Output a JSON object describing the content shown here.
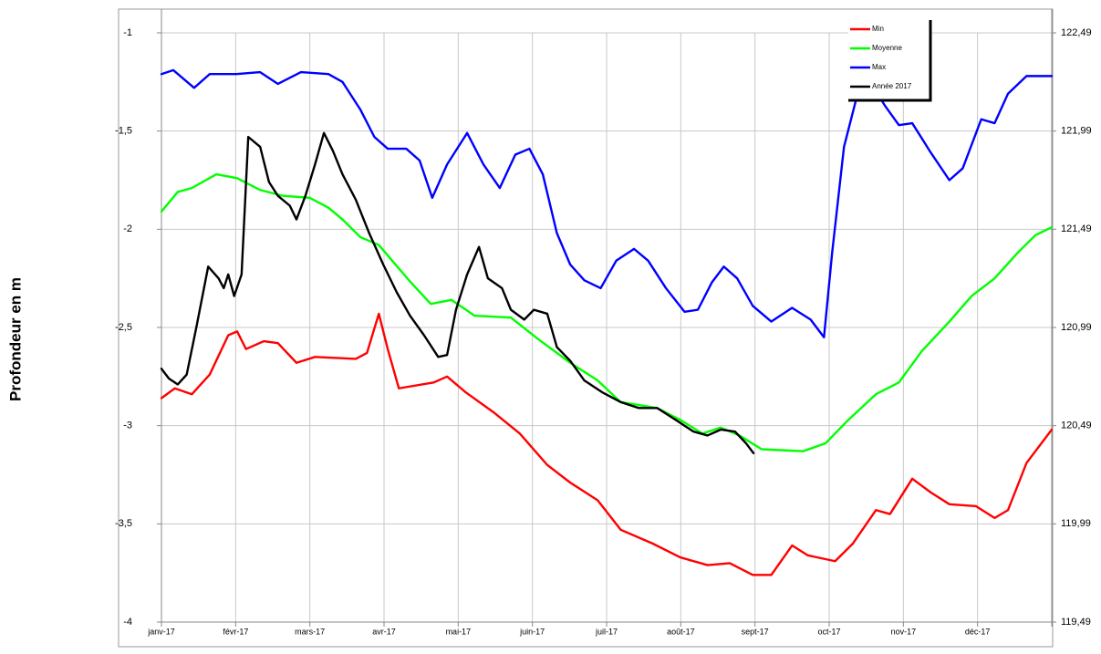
{
  "chart_data": {
    "type": "line",
    "y_label": "Profondeur en m",
    "xlim": [
      0,
      12
    ],
    "xticks": [
      {
        "value": 0,
        "label": "janv-17"
      },
      {
        "value": 1,
        "label": "févr-17"
      },
      {
        "value": 2,
        "label": "mars-17"
      },
      {
        "value": 3,
        "label": "avr-17"
      },
      {
        "value": 4,
        "label": "mai-17"
      },
      {
        "value": 5,
        "label": "juin-17"
      },
      {
        "value": 6,
        "label": "juil-17"
      },
      {
        "value": 7,
        "label": "août-17"
      },
      {
        "value": 8,
        "label": "sept-17"
      },
      {
        "value": 9,
        "label": "oct-17"
      },
      {
        "value": 10,
        "label": "nov-17"
      },
      {
        "value": 11,
        "label": "déc-17"
      },
      12
    ],
    "ylim": [
      -4,
      -1
    ],
    "yticks": [
      -1,
      {
        "value": -1.5,
        "label": "-1,5"
      },
      -2,
      {
        "value": -2.5,
        "label": "-2,5"
      },
      -3,
      {
        "value": -3.5,
        "label": "-3,5"
      },
      -4
    ],
    "y2lim": [
      119.49,
      122.49
    ],
    "y2ticks": [
      {
        "value": 122.49,
        "label": "122,49"
      },
      {
        "value": 121.99,
        "label": "121,99"
      },
      {
        "value": 121.49,
        "label": "121,49"
      },
      {
        "value": 120.99,
        "label": "120,99"
      },
      {
        "value": 120.49,
        "label": "120,49"
      },
      {
        "value": 119.99,
        "label": "119,99"
      },
      {
        "value": 119.49,
        "label": "119,49"
      }
    ],
    "grid": true,
    "legend": "top-right",
    "series": [
      {
        "name": "Min",
        "color": "#ff0000",
        "x": [
          0,
          0.18,
          0.41,
          0.65,
          0.9,
          1.02,
          1.14,
          1.38,
          1.57,
          1.82,
          2.07,
          2.62,
          2.77,
          2.93,
          3.05,
          3.2,
          3.67,
          3.85,
          4.1,
          4.47,
          4.83,
          5.2,
          5.51,
          5.88,
          6.19,
          6.62,
          6.99,
          7.36,
          7.66,
          7.97,
          8.22,
          8.5,
          8.71,
          9.08,
          9.32,
          9.63,
          9.82,
          10.12,
          10.37,
          10.62,
          10.98,
          11.23,
          11.41,
          11.66,
          12
        ],
        "values": [
          -2.86,
          -2.81,
          -2.84,
          -2.74,
          -2.54,
          -2.52,
          -2.61,
          -2.57,
          -2.58,
          -2.68,
          -2.65,
          -2.66,
          -2.63,
          -2.43,
          -2.61,
          -2.81,
          -2.78,
          -2.75,
          -2.83,
          -2.93,
          -3.04,
          -3.2,
          -3.29,
          -3.38,
          -3.53,
          -3.6,
          -3.67,
          -3.71,
          -3.7,
          -3.76,
          -3.76,
          -3.61,
          -3.66,
          -3.69,
          -3.6,
          -3.43,
          -3.45,
          -3.27,
          -3.34,
          -3.4,
          -3.41,
          -3.47,
          -3.43,
          -3.19,
          -3.02
        ]
      },
      {
        "name": "Moyenne",
        "color": "#00ff00",
        "x": [
          0,
          0.22,
          0.41,
          0.74,
          1.02,
          1.33,
          1.64,
          2.0,
          2.25,
          2.44,
          2.68,
          2.93,
          3.11,
          3.36,
          3.63,
          3.91,
          4.22,
          4.71,
          5.08,
          5.51,
          5.88,
          6.19,
          6.68,
          6.99,
          7.29,
          7.54,
          7.79,
          8.09,
          8.65,
          8.95,
          9.26,
          9.63,
          9.94,
          10.25,
          10.62,
          10.92,
          11.23,
          11.54,
          11.78,
          12
        ],
        "values": [
          -1.91,
          -1.81,
          -1.79,
          -1.72,
          -1.74,
          -1.8,
          -1.83,
          -1.84,
          -1.89,
          -1.95,
          -2.04,
          -2.08,
          -2.16,
          -2.27,
          -2.38,
          -2.36,
          -2.44,
          -2.45,
          -2.56,
          -2.68,
          -2.77,
          -2.88,
          -2.91,
          -2.97,
          -3.04,
          -3.01,
          -3.05,
          -3.12,
          -3.13,
          -3.09,
          -2.97,
          -2.84,
          -2.78,
          -2.62,
          -2.47,
          -2.34,
          -2.25,
          -2.12,
          -2.03,
          -1.99
        ]
      },
      {
        "name": "Max",
        "color": "#0000ff",
        "x": [
          0,
          0.16,
          0.44,
          0.65,
          1.01,
          1.33,
          1.57,
          1.88,
          2.25,
          2.44,
          2.68,
          2.87,
          3.05,
          3.3,
          3.48,
          3.65,
          3.85,
          4.12,
          4.34,
          4.56,
          4.77,
          4.96,
          5.14,
          5.33,
          5.51,
          5.7,
          5.92,
          6.13,
          6.37,
          6.56,
          6.8,
          7.05,
          7.23,
          7.42,
          7.58,
          7.76,
          7.97,
          8.22,
          8.5,
          8.75,
          8.93,
          9.04,
          9.2,
          9.39,
          9.57,
          9.75,
          9.94,
          10.12,
          10.37,
          10.62,
          10.8,
          11.05,
          11.23,
          11.41,
          11.66,
          12
        ],
        "values": [
          -1.21,
          -1.19,
          -1.28,
          -1.21,
          -1.21,
          -1.2,
          -1.26,
          -1.2,
          -1.21,
          -1.25,
          -1.39,
          -1.53,
          -1.59,
          -1.59,
          -1.65,
          -1.84,
          -1.67,
          -1.51,
          -1.67,
          -1.79,
          -1.62,
          -1.59,
          -1.72,
          -2.02,
          -2.18,
          -2.26,
          -2.3,
          -2.16,
          -2.1,
          -2.16,
          -2.3,
          -2.42,
          -2.41,
          -2.27,
          -2.19,
          -2.25,
          -2.39,
          -2.47,
          -2.4,
          -2.46,
          -2.55,
          -2.12,
          -1.58,
          -1.3,
          -1.26,
          -1.37,
          -1.47,
          -1.46,
          -1.61,
          -1.75,
          -1.69,
          -1.44,
          -1.46,
          -1.31,
          -1.22,
          -1.22
        ]
      },
      {
        "name": "Année 2017",
        "color": "#000000",
        "x": [
          0,
          0.1,
          0.22,
          0.34,
          0.47,
          0.63,
          0.77,
          0.84,
          0.9,
          0.98,
          1.08,
          1.17,
          1.33,
          1.45,
          1.57,
          1.73,
          1.82,
          1.94,
          2.07,
          2.19,
          2.31,
          2.44,
          2.62,
          2.8,
          2.99,
          3.17,
          3.35,
          3.54,
          3.73,
          3.85,
          3.97,
          4.12,
          4.28,
          4.4,
          4.59,
          4.71,
          4.89,
          5.02,
          5.2,
          5.33,
          5.51,
          5.7,
          5.94,
          6.19,
          6.43,
          6.68,
          6.93,
          7.17,
          7.36,
          7.54,
          7.73,
          7.88,
          7.98
        ],
        "values": [
          -2.71,
          -2.76,
          -2.79,
          -2.74,
          -2.5,
          -2.19,
          -2.25,
          -2.3,
          -2.23,
          -2.34,
          -2.23,
          -1.53,
          -1.58,
          -1.76,
          -1.83,
          -1.88,
          -1.95,
          -1.83,
          -1.67,
          -1.51,
          -1.6,
          -1.72,
          -1.85,
          -2.02,
          -2.18,
          -2.32,
          -2.44,
          -2.54,
          -2.65,
          -2.64,
          -2.41,
          -2.23,
          -2.09,
          -2.25,
          -2.3,
          -2.41,
          -2.46,
          -2.41,
          -2.43,
          -2.6,
          -2.67,
          -2.77,
          -2.83,
          -2.88,
          -2.91,
          -2.91,
          -2.97,
          -3.03,
          -3.05,
          -3.02,
          -3.03,
          -3.09,
          -3.14
        ]
      }
    ]
  }
}
